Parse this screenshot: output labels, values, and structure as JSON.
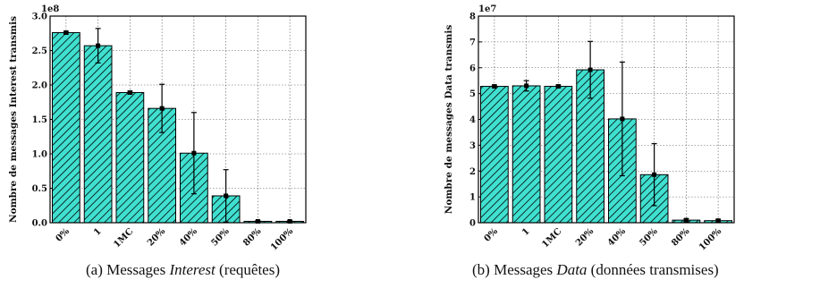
{
  "figures": [
    {
      "caption_prefix": "(a) Messages ",
      "caption_em": "Interest",
      "caption_suffix": " (requêtes)"
    },
    {
      "caption_prefix": "(b) Messages ",
      "caption_em": "Data",
      "caption_suffix": " (données transmises)"
    }
  ],
  "chart_data": [
    {
      "type": "bar",
      "title": "",
      "xlabel": "",
      "ylabel": "Nombre de messages Interest transmis",
      "y_multiplier_label": "1e8",
      "ylim": [
        0,
        3.0
      ],
      "yticks": [
        "0.0",
        "0.5",
        "1.0",
        "1.5",
        "2.0",
        "2.5",
        "3.0"
      ],
      "grid": true,
      "bar_color": "#40e0d0",
      "hatch": "diagonal",
      "categories": [
        "0%",
        "1",
        "1MC",
        "20%",
        "40%",
        "50%",
        "80%",
        "100%"
      ],
      "values": [
        2.76,
        2.57,
        1.89,
        1.66,
        1.01,
        0.39,
        0.02,
        0.02
      ],
      "error": [
        0.02,
        0.25,
        0.02,
        0.35,
        0.59,
        0.38,
        0.01,
        0.01
      ]
    },
    {
      "type": "bar",
      "title": "",
      "xlabel": "",
      "ylabel": "Nombre de messages Data transmis",
      "y_multiplier_label": "1e7",
      "ylim": [
        0,
        8
      ],
      "yticks": [
        "0",
        "1",
        "2",
        "3",
        "4",
        "5",
        "6",
        "7",
        "8"
      ],
      "grid": true,
      "bar_color": "#40e0d0",
      "hatch": "diagonal",
      "categories": [
        "0%",
        "1",
        "1MC",
        "20%",
        "40%",
        "50%",
        "80%",
        "100%"
      ],
      "values": [
        5.28,
        5.3,
        5.28,
        5.92,
        4.02,
        1.86,
        0.1,
        0.08
      ],
      "error": [
        0.05,
        0.2,
        0.05,
        1.1,
        2.2,
        1.2,
        0.05,
        0.05
      ]
    }
  ]
}
